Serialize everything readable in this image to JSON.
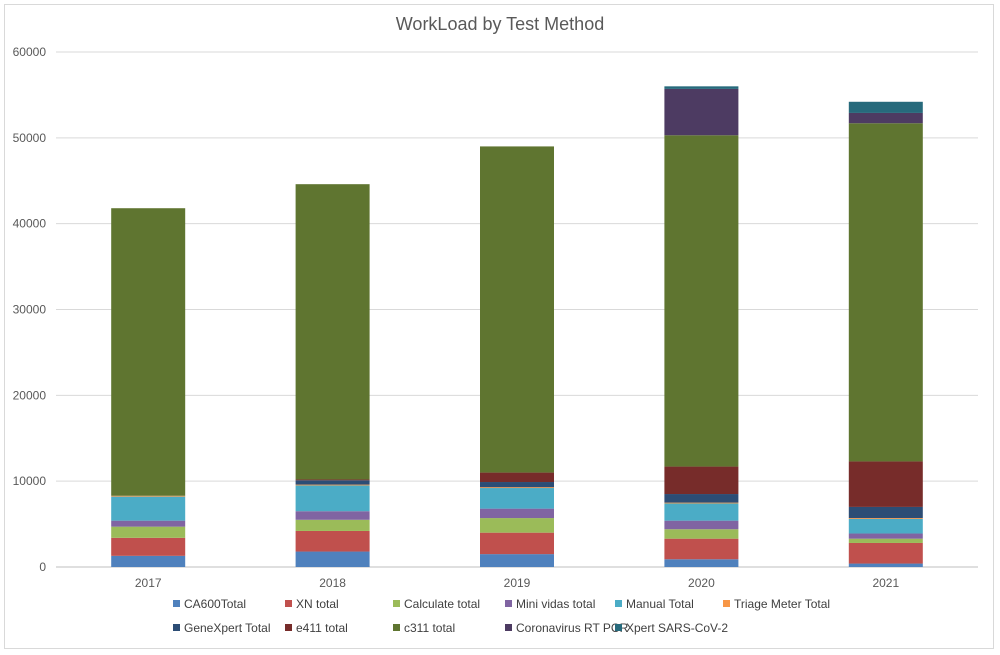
{
  "chart_data": {
    "type": "bar",
    "stacked": true,
    "title": "WorkLoad by Test Method",
    "xlabel": "",
    "ylabel": "",
    "categories": [
      "2017",
      "2018",
      "2019",
      "2020",
      "2021"
    ],
    "ylim": [
      0,
      60000
    ],
    "yticks": [
      0,
      10000,
      20000,
      30000,
      40000,
      50000,
      60000
    ],
    "grid": true,
    "legend_position": "bottom",
    "series": [
      {
        "name": "CA600Total",
        "color": "#4f81bd",
        "values": [
          1300,
          1800,
          1500,
          900,
          400
        ]
      },
      {
        "name": "XN total",
        "color": "#c0504d",
        "values": [
          2100,
          2400,
          2500,
          2400,
          2400
        ]
      },
      {
        "name": "Calculate total",
        "color": "#9bbb59",
        "values": [
          1300,
          1300,
          1700,
          1100,
          500
        ]
      },
      {
        "name": "Mini vidas total",
        "color": "#8064a2",
        "values": [
          700,
          1000,
          1100,
          1000,
          600
        ]
      },
      {
        "name": "Manual Total",
        "color": "#4bacc6",
        "values": [
          2800,
          3000,
          2400,
          2000,
          1700
        ]
      },
      {
        "name": "Triage Meter Total",
        "color": "#f79646",
        "values": [
          100,
          100,
          100,
          100,
          100
        ]
      },
      {
        "name": "GeneXpert Total",
        "color": "#2c4d75",
        "values": [
          0,
          500,
          600,
          1000,
          1300
        ]
      },
      {
        "name": "e411 total",
        "color": "#772c2a",
        "values": [
          0,
          100,
          1100,
          3200,
          5300
        ]
      },
      {
        "name": "c311 total",
        "color": "#5f7530",
        "values": [
          33500,
          34400,
          38000,
          38600,
          39400
        ]
      },
      {
        "name": "Coronavirus RT PCR",
        "color": "#4d3b62",
        "values": [
          0,
          0,
          0,
          5400,
          1200
        ]
      },
      {
        "name": "Xpert SARS-CoV-2",
        "color": "#276a7c",
        "values": [
          0,
          0,
          0,
          300,
          1300
        ]
      }
    ]
  }
}
